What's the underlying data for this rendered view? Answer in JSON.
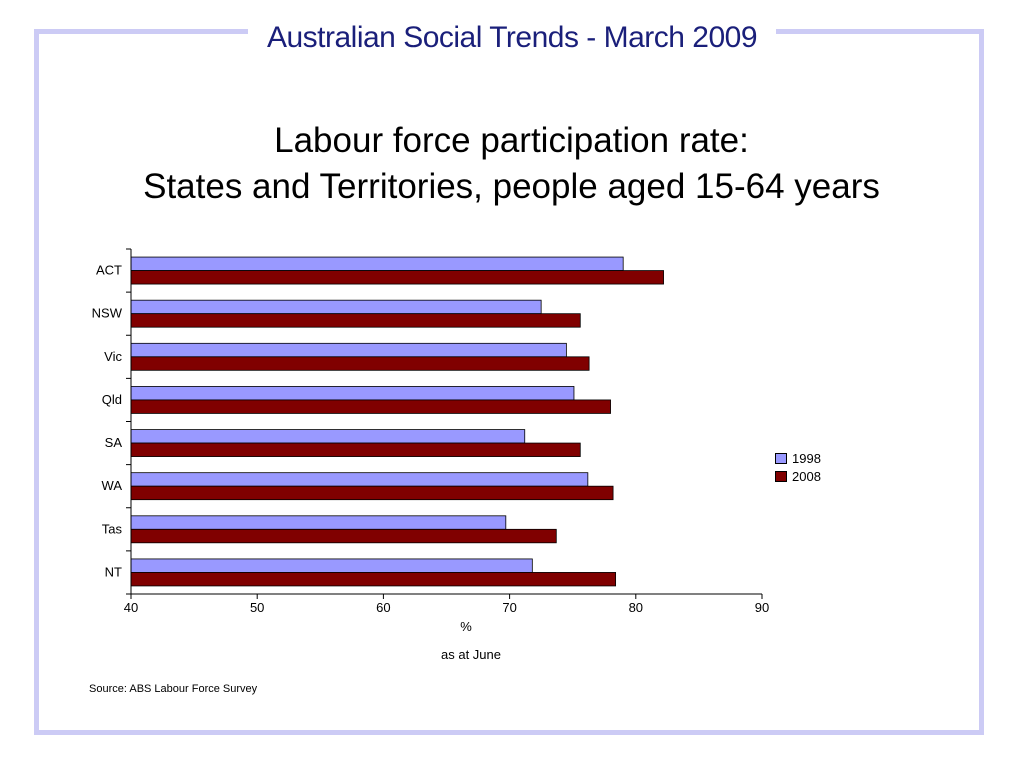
{
  "header": {
    "title": "Australian Social Trends - March 2009"
  },
  "chart_data": {
    "type": "bar",
    "orientation": "horizontal",
    "title_lines": [
      "Labour force participation rate:",
      "States and Territories, people aged 15-64 years"
    ],
    "categories": [
      "ACT",
      "NSW",
      "Vic",
      "Qld",
      "SA",
      "WA",
      "Tas",
      "NT"
    ],
    "series": [
      {
        "name": "1998",
        "color": "#9999ff",
        "values": [
          79.0,
          72.5,
          74.5,
          75.1,
          71.2,
          76.2,
          69.7,
          71.8
        ]
      },
      {
        "name": "2008",
        "color": "#800000",
        "values": [
          82.2,
          75.6,
          76.3,
          78.0,
          75.6,
          78.2,
          73.7,
          78.4
        ]
      }
    ],
    "xlim": [
      40,
      90
    ],
    "xticks": [
      40,
      50,
      60,
      70,
      80,
      90
    ],
    "xlabel": "%",
    "note": "as at June",
    "legend_position": "right",
    "grid": false
  },
  "source": "Source: ABS Labour Force Survey"
}
